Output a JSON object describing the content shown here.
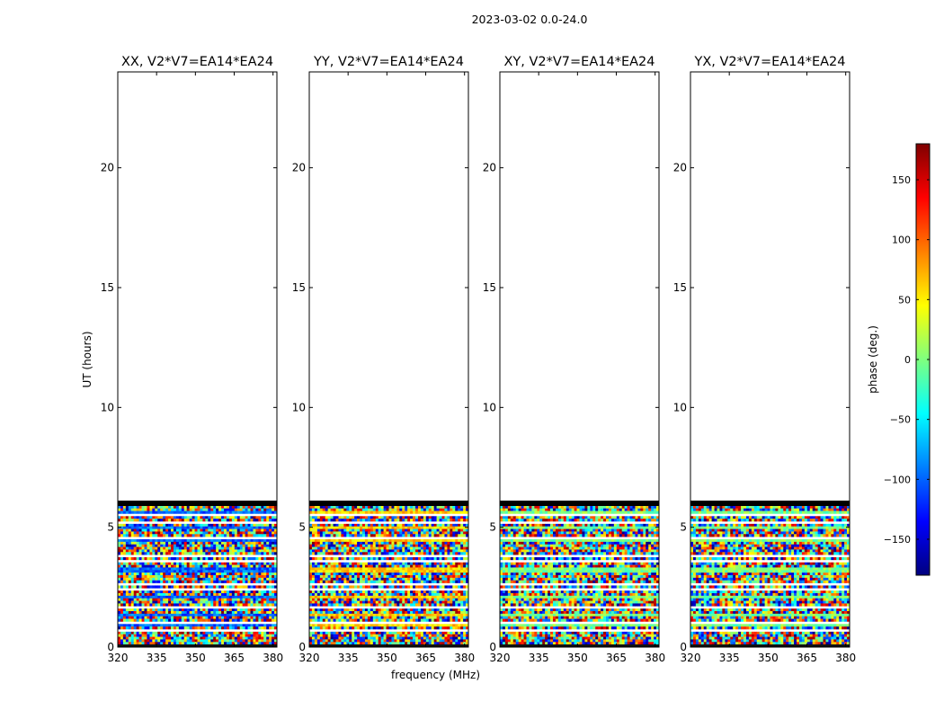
{
  "figure": {
    "suptitle": "2023-03-02 0.0-24.0"
  },
  "chart_data": [
    {
      "type": "heatmap",
      "title": "XX, V2*V7=EA14*EA24",
      "xlabel": "",
      "ylabel": "UT (hours)",
      "xlim": [
        320,
        381.5
      ],
      "ylim": [
        0,
        24
      ],
      "xticks": [
        320,
        335,
        350,
        365,
        380
      ],
      "yticks": [
        0,
        5,
        10,
        15,
        20
      ],
      "data_extent_hours": [
        0,
        6
      ],
      "dominant_phase": -100
    },
    {
      "type": "heatmap",
      "title": "YY, V2*V7=EA14*EA24",
      "xlabel": "frequency (MHz)",
      "ylabel": "",
      "xlim": [
        320,
        381.5
      ],
      "ylim": [
        0,
        24
      ],
      "xticks": [
        320,
        335,
        350,
        365,
        380
      ],
      "yticks": [
        0,
        5,
        10,
        15,
        20
      ],
      "data_extent_hours": [
        0,
        6
      ],
      "dominant_phase": 60
    },
    {
      "type": "heatmap",
      "title": "XY, V2*V7=EA14*EA24",
      "xlabel": "",
      "ylabel": "",
      "xlim": [
        320,
        381.5
      ],
      "ylim": [
        0,
        24
      ],
      "xticks": [
        320,
        335,
        350,
        365,
        380
      ],
      "yticks": [
        0,
        5,
        10,
        15,
        20
      ],
      "data_extent_hours": [
        0,
        6
      ],
      "dominant_phase": 0
    },
    {
      "type": "heatmap",
      "title": "YX, V2*V7=EA14*EA24",
      "xlabel": "",
      "ylabel": "",
      "xlim": [
        320,
        381.5
      ],
      "ylim": [
        0,
        24
      ],
      "xticks": [
        320,
        335,
        350,
        365,
        380
      ],
      "yticks": [
        0,
        5,
        10,
        15,
        20
      ],
      "data_extent_hours": [
        0,
        6
      ],
      "dominant_phase": 0
    }
  ],
  "colorbar": {
    "label": "phase (deg.)",
    "min": -180,
    "max": 180,
    "ticks": [
      150,
      100,
      50,
      0,
      -50,
      -100,
      -150
    ],
    "tick_labels": [
      "150",
      "100",
      "50",
      "0",
      "−50",
      "−100",
      "−150"
    ],
    "colors": [
      "#00007f",
      "#0000ff",
      "#007fff",
      "#00ffff",
      "#7fff7f",
      "#ffff00",
      "#ff7f00",
      "#ff0000",
      "#7f0000"
    ]
  }
}
